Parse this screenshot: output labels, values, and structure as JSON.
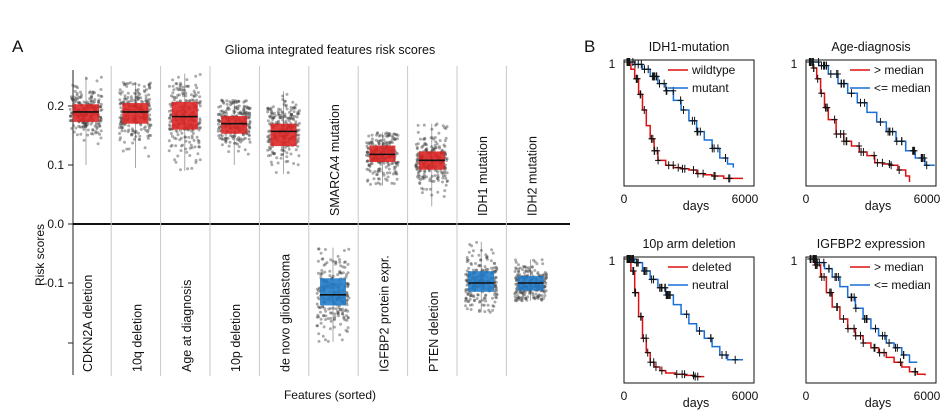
{
  "panel_a": {
    "label": "A",
    "title": "Glioma integrated features risk scores",
    "ylabel": "Risk  scores",
    "xlabel": "Features (sorted)",
    "tick_labels": [
      "0.2",
      "0.1",
      "0.0",
      "-0.1"
    ],
    "positive_color": "#dd2222",
    "negative_color": "#1f7ac8"
  },
  "panel_b": {
    "label": "B",
    "series_colors": {
      "red": "#dd1111",
      "blue": "#1a6fd6"
    }
  },
  "chart_data": [
    {
      "type": "box",
      "title": "Glioma integrated features risk scores",
      "xlabel": "Features (sorted)",
      "ylabel": "Risk  scores",
      "ylim": [
        -0.2,
        0.27
      ],
      "yticks": [
        0.2,
        0.1,
        0.0,
        -0.1
      ],
      "features": [
        {
          "name": "CDKN2A deletion",
          "median": 0.19,
          "q1": 0.173,
          "q3": 0.203,
          "min": 0.1,
          "max": 0.25
        },
        {
          "name": "10q deletion",
          "median": 0.19,
          "q1": 0.17,
          "q3": 0.205,
          "min": 0.095,
          "max": 0.24
        },
        {
          "name": "Age at diagnosis",
          "median": 0.182,
          "q1": 0.16,
          "q3": 0.207,
          "min": 0.09,
          "max": 0.255
        },
        {
          "name": "10p deletion",
          "median": 0.17,
          "q1": 0.153,
          "q3": 0.183,
          "min": 0.1,
          "max": 0.21
        },
        {
          "name": "de novo glioblastoma",
          "median": 0.157,
          "q1": 0.132,
          "q3": 0.17,
          "min": 0.085,
          "max": 0.225
        },
        {
          "name": "SMARCA4 mutation",
          "median": -0.12,
          "q1": -0.138,
          "q3": -0.092,
          "min": -0.2,
          "max": -0.04
        },
        {
          "name": "IGFBP2 protein expr.",
          "median": 0.118,
          "q1": 0.105,
          "q3": 0.133,
          "min": 0.065,
          "max": 0.155
        },
        {
          "name": "PTEN deletion",
          "median": 0.108,
          "q1": 0.092,
          "q3": 0.123,
          "min": 0.03,
          "max": 0.17
        },
        {
          "name": "IDH1 mutation",
          "median": -0.1,
          "q1": -0.115,
          "q3": -0.08,
          "min": -0.15,
          "max": -0.03
        },
        {
          "name": "IDH2 mutation",
          "median": -0.1,
          "q1": -0.113,
          "q3": -0.088,
          "min": -0.13,
          "max": -0.06
        }
      ]
    },
    {
      "type": "line",
      "title": "IDH1-mutation",
      "xlabel": "days",
      "x_tick_labels": [
        "0",
        "6000"
      ],
      "y_tick_labels": [
        "1"
      ],
      "xlim": [
        0,
        6000
      ],
      "ylim": [
        0,
        1
      ],
      "legend": "top-right",
      "series": [
        {
          "name": "wildtype",
          "color": "red",
          "x": [
            0,
            200,
            400,
            600,
            800,
            1000,
            1200,
            1400,
            1600,
            2000,
            2400,
            2800,
            3200,
            3600,
            4000,
            4400,
            5000,
            5500,
            6000
          ],
          "y": [
            1.0,
            0.94,
            0.86,
            0.73,
            0.6,
            0.47,
            0.36,
            0.26,
            0.18,
            0.14,
            0.12,
            0.11,
            0.1,
            0.07,
            0.06,
            0.05,
            0.03,
            0.03,
            0.03
          ]
        },
        {
          "name": "mutant",
          "color": "blue",
          "x": [
            0,
            400,
            800,
            1200,
            1600,
            2000,
            2400,
            2800,
            3200,
            3600,
            4000,
            4400,
            4800,
            5200,
            5500
          ],
          "y": [
            1.0,
            0.98,
            0.94,
            0.88,
            0.82,
            0.76,
            0.68,
            0.6,
            0.51,
            0.42,
            0.35,
            0.28,
            0.2,
            0.15,
            0.12
          ]
        }
      ]
    },
    {
      "type": "line",
      "title": "Age-diagnosis",
      "xlabel": "days",
      "x_tick_labels": [
        "0",
        "6000"
      ],
      "y_tick_labels": [
        "1"
      ],
      "xlim": [
        0,
        6000
      ],
      "ylim": [
        0,
        1
      ],
      "legend": "top-right",
      "series": [
        {
          "name": "> median",
          "color": "red",
          "x": [
            0,
            200,
            400,
            600,
            800,
            1000,
            1400,
            1800,
            2200,
            2600,
            3000,
            3400,
            3800,
            4200,
            4600,
            5000,
            5200
          ],
          "y": [
            1.0,
            0.95,
            0.86,
            0.74,
            0.62,
            0.52,
            0.4,
            0.34,
            0.3,
            0.25,
            0.22,
            0.16,
            0.15,
            0.14,
            0.1,
            0.05,
            0.0
          ]
        },
        {
          "name": "<= median",
          "color": "blue",
          "x": [
            0,
            500,
            1000,
            1500,
            2000,
            2500,
            3000,
            3500,
            4000,
            4500,
            5000,
            5500,
            6000,
            6500
          ],
          "y": [
            1.0,
            0.97,
            0.9,
            0.82,
            0.74,
            0.66,
            0.58,
            0.5,
            0.42,
            0.34,
            0.26,
            0.2,
            0.14,
            0.14
          ]
        }
      ]
    },
    {
      "type": "line",
      "title": "10p arm deletion",
      "xlabel": "days",
      "x_tick_labels": [
        "0",
        "6000"
      ],
      "y_tick_labels": [
        "1"
      ],
      "xlim": [
        0,
        6000
      ],
      "ylim": [
        0,
        1
      ],
      "legend": "top-right",
      "series": [
        {
          "name": "deleted",
          "color": "red",
          "x": [
            0,
            200,
            400,
            600,
            800,
            1000,
            1200,
            1400,
            1700,
            2000,
            2500,
            3000,
            3500,
            4000
          ],
          "y": [
            1.0,
            0.9,
            0.72,
            0.52,
            0.34,
            0.22,
            0.14,
            0.1,
            0.07,
            0.05,
            0.04,
            0.03,
            0.02,
            0.02
          ]
        },
        {
          "name": "neutral",
          "color": "blue",
          "x": [
            0,
            400,
            800,
            1200,
            1600,
            2000,
            2400,
            2800,
            3200,
            3600,
            4000,
            4400,
            4800,
            5200,
            5600,
            6000
          ],
          "y": [
            1.0,
            0.97,
            0.9,
            0.83,
            0.76,
            0.7,
            0.62,
            0.54,
            0.46,
            0.4,
            0.34,
            0.27,
            0.2,
            0.16,
            0.16,
            0.16
          ]
        }
      ]
    },
    {
      "type": "line",
      "title": "IGFBP2 expression",
      "xlabel": "days",
      "x_tick_labels": [
        "0",
        "6000"
      ],
      "y_tick_labels": [
        "1"
      ],
      "xlim": [
        0,
        6000
      ],
      "ylim": [
        0,
        1
      ],
      "legend": "top-right",
      "series": [
        {
          "name": "> median",
          "color": "red",
          "x": [
            0,
            300,
            600,
            900,
            1200,
            1600,
            2000,
            2400,
            2800,
            3200,
            3600,
            4000,
            4400,
            4800,
            5200,
            5600,
            6000
          ],
          "y": [
            1.0,
            0.95,
            0.85,
            0.72,
            0.6,
            0.5,
            0.42,
            0.36,
            0.3,
            0.26,
            0.22,
            0.18,
            0.14,
            0.1,
            0.06,
            0.04,
            0.03
          ]
        },
        {
          "name": "<= median",
          "color": "blue",
          "x": [
            0,
            400,
            800,
            1200,
            1600,
            2000,
            2400,
            2800,
            3200,
            3600,
            4000,
            4400,
            4800,
            5200,
            5600
          ],
          "y": [
            1.0,
            0.97,
            0.92,
            0.85,
            0.77,
            0.68,
            0.59,
            0.5,
            0.42,
            0.36,
            0.3,
            0.26,
            0.2,
            0.14,
            0.14
          ]
        }
      ]
    }
  ]
}
